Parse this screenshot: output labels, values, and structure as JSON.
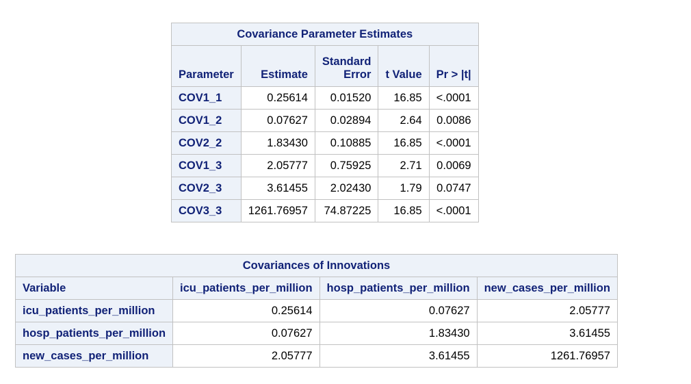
{
  "cov_params": {
    "title": "Covariance Parameter Estimates",
    "headers": {
      "parameter": "Parameter",
      "estimate": "Estimate",
      "stderr_line1": "Standard",
      "stderr_line2": "Error",
      "tvalue": "t Value",
      "pr": "Pr > |t|"
    },
    "rows": [
      {
        "parameter": "COV1_1",
        "estimate": "0.25614",
        "stderr": "0.01520",
        "tvalue": "16.85",
        "pr": "<.0001"
      },
      {
        "parameter": "COV1_2",
        "estimate": "0.07627",
        "stderr": "0.02894",
        "tvalue": "2.64",
        "pr": "0.0086"
      },
      {
        "parameter": "COV2_2",
        "estimate": "1.83430",
        "stderr": "0.10885",
        "tvalue": "16.85",
        "pr": "<.0001"
      },
      {
        "parameter": "COV1_3",
        "estimate": "2.05777",
        "stderr": "0.75925",
        "tvalue": "2.71",
        "pr": "0.0069"
      },
      {
        "parameter": "COV2_3",
        "estimate": "3.61455",
        "stderr": "2.02430",
        "tvalue": "1.79",
        "pr": "0.0747"
      },
      {
        "parameter": "COV3_3",
        "estimate": "1261.76957",
        "stderr": "74.87225",
        "tvalue": "16.85",
        "pr": "<.0001"
      }
    ]
  },
  "cov_innov": {
    "title": "Covariances of Innovations",
    "headers": {
      "variable": "Variable",
      "col1": "icu_patients_per_million",
      "col2": "hosp_patients_per_million",
      "col3": "new_cases_per_million"
    },
    "rows": [
      {
        "variable": "icu_patients_per_million",
        "c1": "0.25614",
        "c2": "0.07627",
        "c3": "2.05777"
      },
      {
        "variable": "hosp_patients_per_million",
        "c1": "0.07627",
        "c2": "1.83430",
        "c3": "3.61455"
      },
      {
        "variable": "new_cases_per_million",
        "c1": "2.05777",
        "c2": "3.61455",
        "c3": "1261.76957"
      }
    ]
  }
}
